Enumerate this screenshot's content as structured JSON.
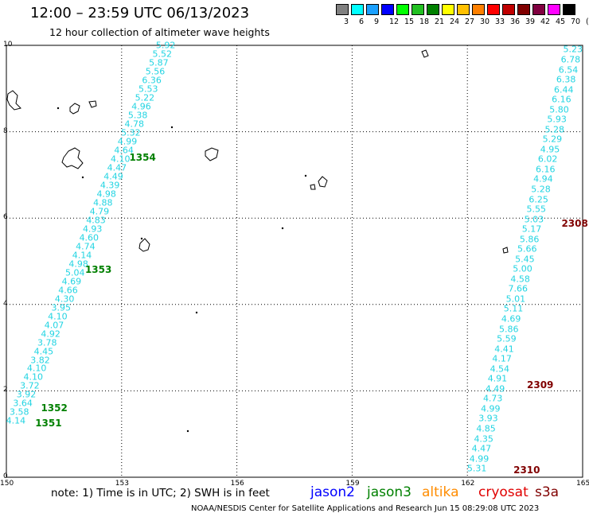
{
  "title": "12:00 – 23:59 UTC 06/13/2023",
  "subtitle": "12 hour collection of altimeter wave heights",
  "scale": {
    "colors": [
      "#808080",
      "#00ffff",
      "#1aa0ff",
      "#0000ff",
      "#00ff00",
      "#22c022",
      "#008000",
      "#ffff00",
      "#ffc000",
      "#ff8000",
      "#ff0000",
      "#c00000",
      "#800000",
      "#800040",
      "#ff00ff",
      "#000000"
    ],
    "labels": [
      "3",
      "6",
      "9",
      "12",
      "15",
      "18",
      "21",
      "24",
      "27",
      "30",
      "33",
      "36",
      "39",
      "42",
      "45",
      "70",
      "(ft)"
    ]
  },
  "map": {
    "lon_ticks": [
      "150",
      "153",
      "156",
      "159",
      "162",
      "165"
    ],
    "lat_ticks": [
      "0",
      "2",
      "4",
      "6",
      "8",
      "10"
    ],
    "obs_color": "#22d4e2",
    "tracks": [
      {
        "start": [
          154.4,
          10.0
        ],
        "end": [
          150.5,
          1.3
        ],
        "values": [
          "5.92",
          "5.52",
          "5.87",
          "5.56",
          "6.36",
          "5.53",
          "5.22",
          "4.96",
          "5.38",
          "4.78",
          "5.32",
          "4.99",
          "4.64",
          "4.10",
          "4.47",
          "4.49",
          "4.39",
          "4.98",
          "4.88",
          "4.79",
          "4.83",
          "4.93",
          "4.60",
          "4.74",
          "4.14",
          "4.98",
          "5.04",
          "4.69",
          "4.66",
          "4.30",
          "3.95",
          "4.10",
          "4.07",
          "4.92",
          "3.78",
          "4.45",
          "3.82",
          "4.10",
          "4.10",
          "3.72",
          "3.92",
          "3.64",
          "3.58",
          "4.14"
        ]
      },
      {
        "start": [
          165.0,
          9.9
        ],
        "end": [
          162.5,
          0.2
        ],
        "values": [
          "5.23",
          "6.78",
          "6.54",
          "6.38",
          "6.44",
          "6.16",
          "5.80",
          "5.93",
          "5.28",
          "5.29",
          "4.95",
          "6.02",
          "6.16",
          "4.94",
          "5.28",
          "6.25",
          "5.55",
          "5.03",
          "5.17",
          "5.86",
          "5.66",
          "5.45",
          "5.00",
          "4.58",
          "7.66",
          "5.01",
          "5.11",
          "4.69",
          "5.86",
          "5.59",
          "4.41",
          "4.17",
          "4.54",
          "4.91",
          "4.49",
          "4.73",
          "4.99",
          "3.93",
          "4.85",
          "4.35",
          "4.47",
          "4.99",
          "5.31"
        ]
      }
    ],
    "pass_labels": [
      {
        "text": "1354",
        "color": "#008000",
        "lon": 153.2,
        "lat": 7.4
      },
      {
        "text": "1353",
        "color": "#008000",
        "lon": 152.05,
        "lat": 4.8
      },
      {
        "text": "1352",
        "color": "#008000",
        "lon": 150.9,
        "lat": 1.6
      },
      {
        "text": "1351",
        "color": "#008000",
        "lon": 150.75,
        "lat": 1.25
      },
      {
        "text": "2308",
        "color": "#800000",
        "lon": 164.45,
        "lat": 5.88
      },
      {
        "text": "2309",
        "color": "#800000",
        "lon": 163.55,
        "lat": 2.14
      },
      {
        "text": "2310",
        "color": "#800000",
        "lon": 163.2,
        "lat": 0.16
      }
    ]
  },
  "note": "note: 1) Time is in UTC; 2) SWH is in feet",
  "legend": [
    {
      "name": "jason2",
      "color": "#0000ff"
    },
    {
      "name": "jason3",
      "color": "#008000"
    },
    {
      "name": "altika",
      "color": "#ff8c00"
    },
    {
      "name": "cryosat",
      "color": "#e00000"
    },
    {
      "name": "s3a",
      "color": "#800000"
    }
  ],
  "footer": "NOAA/NESDIS Center for Satellite Applications and Research     Jun 15 08:29:08 UTC 2023"
}
